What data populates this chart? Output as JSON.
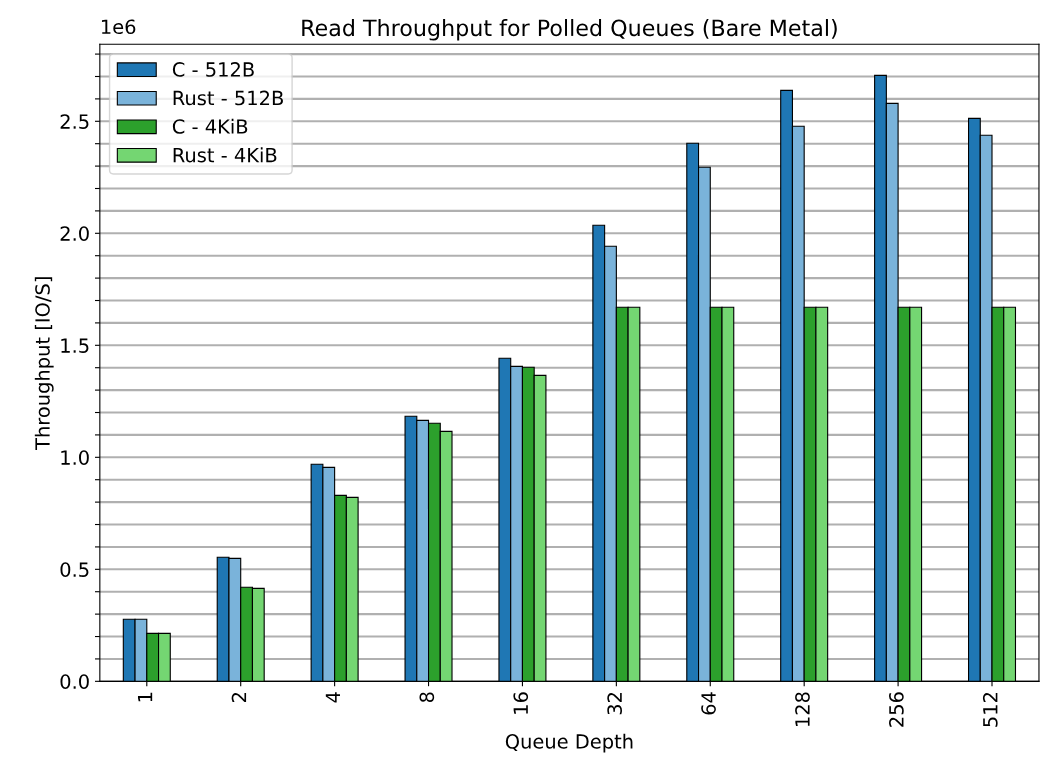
{
  "chart_data": {
    "type": "bar",
    "title": "Read Throughput for Polled Queues (Bare Metal)",
    "xlabel": "Queue Depth",
    "ylabel": "Throughput [IO/S]",
    "annotations": [
      "1e6"
    ],
    "categories": [
      "1",
      "2",
      "4",
      "8",
      "16",
      "32",
      "64",
      "128",
      "256",
      "512"
    ],
    "series": [
      {
        "name": "C - 512B",
        "color": "#1f77b4",
        "values": [
          0.277,
          0.554,
          0.969,
          1.183,
          1.442,
          2.036,
          2.402,
          2.638,
          2.705,
          2.513
        ]
      },
      {
        "name": "Rust - 512B",
        "color": "#7ab3da",
        "values": [
          0.277,
          0.549,
          0.955,
          1.165,
          1.406,
          1.942,
          2.295,
          2.478,
          2.58,
          2.438
        ]
      },
      {
        "name": "C - 4KiB",
        "color": "#2ca02c",
        "values": [
          0.214,
          0.42,
          0.83,
          1.152,
          1.402,
          1.67,
          1.67,
          1.67,
          1.67,
          1.67
        ]
      },
      {
        "name": "Rust - 4KiB",
        "color": "#74d672",
        "values": [
          0.214,
          0.415,
          0.821,
          1.116,
          1.366,
          1.67,
          1.67,
          1.67,
          1.67,
          1.67
        ]
      }
    ],
    "ylim": [
      0,
      2.844
    ],
    "yticks": [
      {
        "value": 0,
        "label": "0.0"
      },
      {
        "value": 0.1,
        "label": null
      },
      {
        "value": 0.2,
        "label": null
      },
      {
        "value": 0.3,
        "label": null
      },
      {
        "value": 0.4,
        "label": null
      },
      0.5,
      {
        "value": 0.6,
        "label": null
      },
      {
        "value": 0.7,
        "label": null
      },
      {
        "value": 0.8,
        "label": null
      },
      {
        "value": 0.9,
        "label": null
      },
      {
        "value": 1,
        "label": "1.0"
      },
      {
        "value": 1.1,
        "label": null
      },
      {
        "value": 1.2,
        "label": null
      },
      {
        "value": 1.3,
        "label": null
      },
      {
        "value": 1.4,
        "label": null
      },
      1.5,
      {
        "value": 1.6,
        "label": null
      },
      {
        "value": 1.7,
        "label": null
      },
      {
        "value": 1.8,
        "label": null
      },
      {
        "value": 1.9,
        "label": null
      },
      {
        "value": 2,
        "label": "2.0"
      },
      {
        "value": 2.1,
        "label": null
      },
      {
        "value": 2.2,
        "label": null
      },
      {
        "value": 2.3,
        "label": null
      },
      {
        "value": 2.4,
        "label": null
      },
      2.5,
      {
        "value": 2.6,
        "label": null
      },
      {
        "value": 2.7,
        "label": null
      },
      {
        "value": 2.8,
        "label": null
      }
    ],
    "grid": "y",
    "legend": "top left"
  }
}
